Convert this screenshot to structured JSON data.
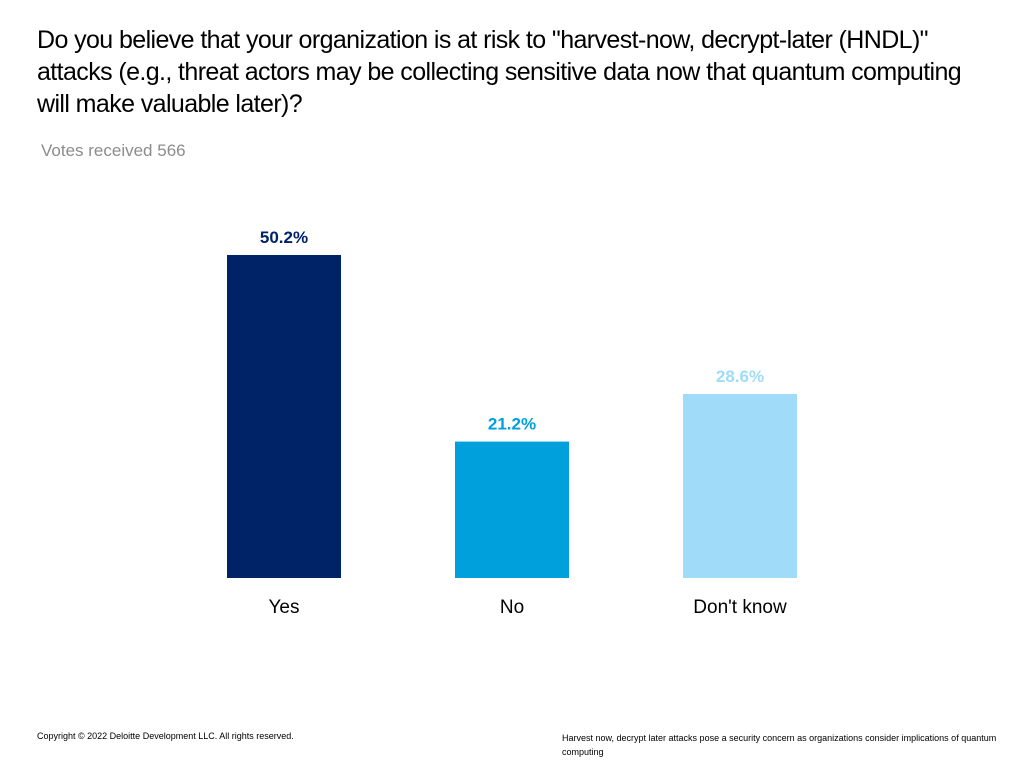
{
  "page": {
    "title": "Do you believe that your organization is at risk to \"harvest-now, decrypt-later (HNDL)\" attacks (e.g., threat actors may be collecting sensitive data now that quantum computing will make valuable later)?",
    "subtitle": "Votes received 566",
    "footer_left": "Copyright © 2022 Deloitte Development LLC. All rights reserved.",
    "footer_right": "Harvest now, decrypt later attacks pose a security concern as organizations consider implications of quantum computing"
  },
  "chart_data": {
    "type": "bar",
    "title": "",
    "xlabel": "",
    "ylabel": "",
    "ylim": [
      0,
      50.2
    ],
    "grid": false,
    "categories": [
      "Yes",
      "No",
      "Don't know"
    ],
    "values": [
      50.2,
      21.2,
      28.6
    ],
    "data_labels": [
      "50.2%",
      "21.2%",
      "28.6%"
    ],
    "colors": [
      "#002266",
      "#00a0dc",
      "#a0dbfa"
    ]
  }
}
